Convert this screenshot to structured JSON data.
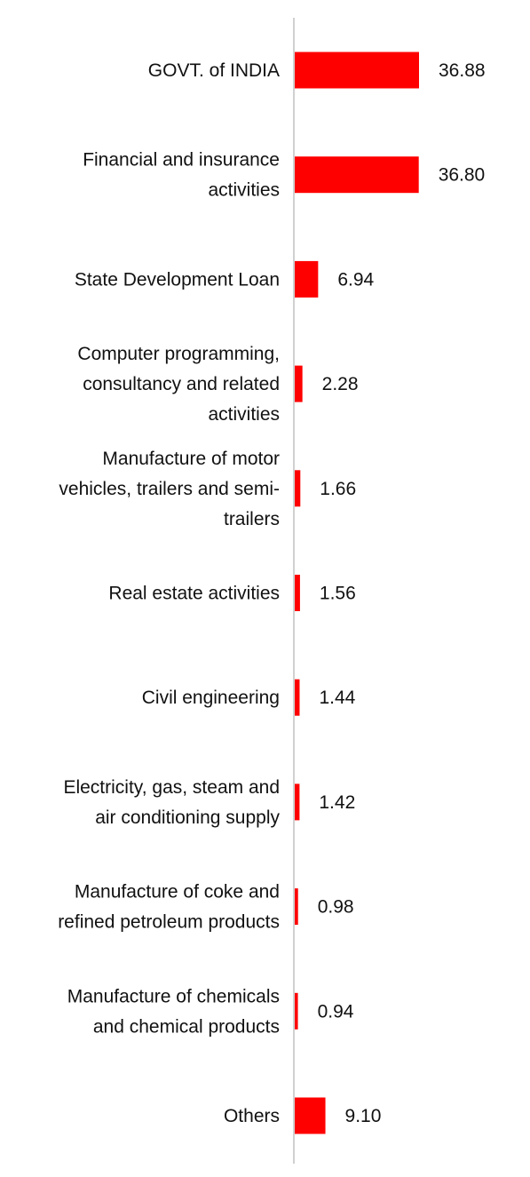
{
  "chart_data": {
    "type": "bar",
    "orientation": "horizontal",
    "categories": [
      "GOVT. of INDIA",
      "Financial and insurance activities",
      "State Development Loan",
      "Computer programming, consultancy and related activities",
      "Manufacture of motor vehicles, trailers and semi-trailers",
      "Real estate activities",
      "Civil engineering",
      "Electricity, gas, steam and air conditioning supply",
      "Manufacture of coke and refined petroleum products",
      "Manufacture of chemicals and chemical products",
      "Others"
    ],
    "category_lines": [
      [
        "GOVT. of INDIA"
      ],
      [
        "Financial and insurance",
        "activities"
      ],
      [
        "State Development Loan"
      ],
      [
        "Computer programming,",
        "consultancy and related",
        "activities"
      ],
      [
        "Manufacture of motor",
        "vehicles, trailers and semi-",
        "trailers"
      ],
      [
        "Real estate activities"
      ],
      [
        "Civil engineering"
      ],
      [
        "Electricity, gas, steam and",
        "air conditioning supply"
      ],
      [
        "Manufacture of coke and",
        "refined petroleum products"
      ],
      [
        "Manufacture of chemicals",
        "and chemical products"
      ],
      [
        "Others"
      ]
    ],
    "values": [
      36.88,
      36.8,
      6.94,
      2.28,
      1.66,
      1.56,
      1.44,
      1.42,
      0.98,
      0.94,
      9.1
    ],
    "value_labels": [
      "36.88",
      "36.80",
      "6.94",
      "2.28",
      "1.66",
      "1.56",
      "1.44",
      "1.42",
      "0.98",
      "0.94",
      "9.10"
    ],
    "title": "",
    "xlabel": "",
    "ylabel": "",
    "xlim": [
      0,
      36.88
    ],
    "grid": false,
    "legend": "none",
    "bar_color": "#ff0000",
    "axis_color": "#d0d0d0"
  }
}
